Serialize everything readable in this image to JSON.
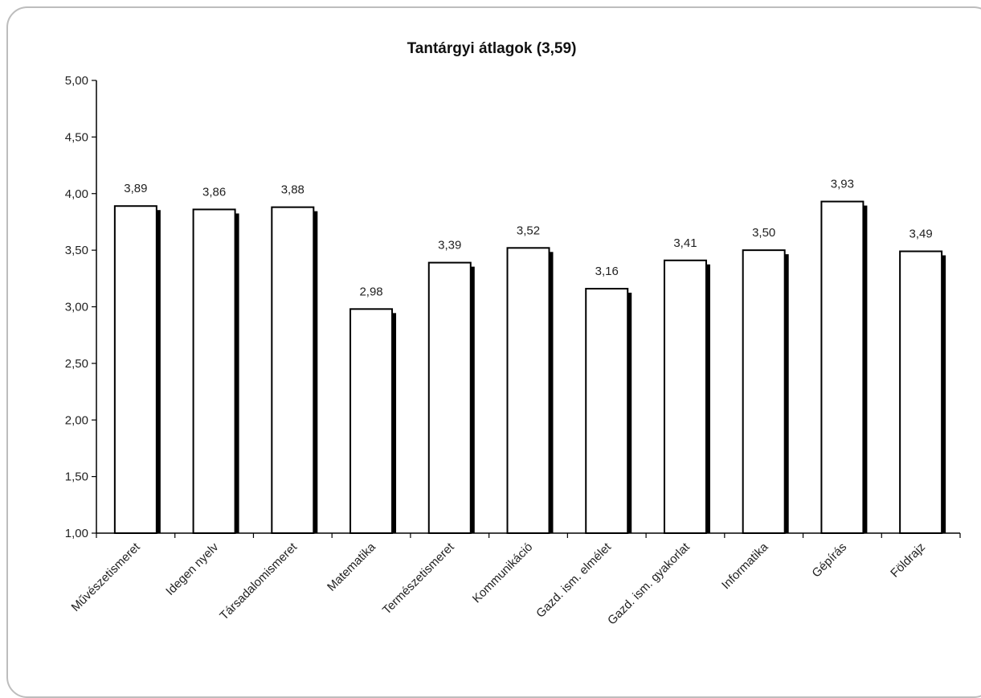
{
  "chart_data": {
    "type": "bar",
    "title": "Tantárgyi átlagok (3,59)",
    "xlabel": "",
    "ylabel": "",
    "ylim": [
      1.0,
      5.0
    ],
    "yticks": [
      "1,00",
      "1,50",
      "2,00",
      "2,50",
      "3,00",
      "3,50",
      "4,00",
      "4,50",
      "5,00"
    ],
    "categories": [
      "Művészetismeret",
      "Idegen nyelv",
      "Társadalomismeret",
      "Matematika",
      "Természetismeret",
      "Kommunikáció",
      "Gazd. ism. elmélet",
      "Gazd. ism. gyakorlat",
      "Informatika",
      "Gépírás",
      "Földrajz"
    ],
    "values": [
      3.89,
      3.86,
      3.88,
      2.98,
      3.39,
      3.52,
      3.16,
      3.41,
      3.5,
      3.93,
      3.49
    ],
    "data_labels": [
      "3,89",
      "3,86",
      "3,88",
      "2,98",
      "3,39",
      "3,52",
      "3,16",
      "3,41",
      "3,50",
      "3,93",
      "3,49"
    ],
    "grid": false,
    "legend": "none",
    "bar_fill": "#ffffff",
    "bar_stroke": "#000000"
  }
}
